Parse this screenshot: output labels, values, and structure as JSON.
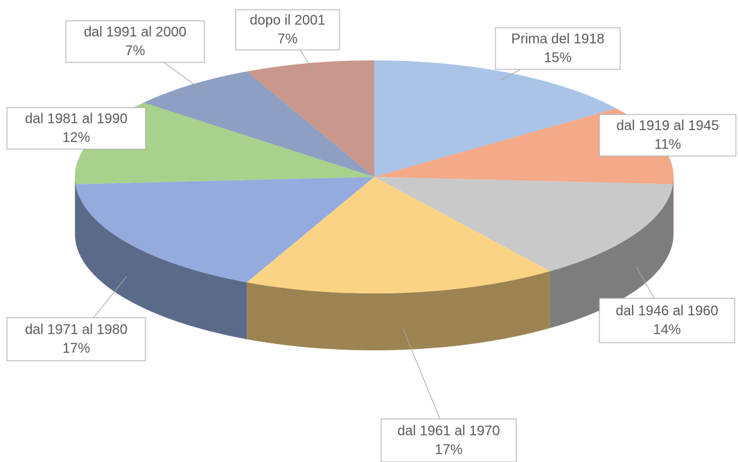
{
  "chart_data": {
    "type": "pie3d",
    "categories": [
      "Prima del 1918",
      "dal 1919 al 1945",
      "dal 1946 al 1960",
      "dal 1961 al 1970",
      "dal 1971 al 1980",
      "dal 1981 al 1990",
      "dal 1991 al 2000",
      "dopo il 2001"
    ],
    "values": [
      15,
      11,
      14,
      17,
      17,
      12,
      7,
      7
    ],
    "value_labels": [
      "15%",
      "11%",
      "14%",
      "17%",
      "17%",
      "12%",
      "7%",
      "7%"
    ],
    "colors": [
      "#a9c4e6",
      "#f4a988",
      "#c9c9c9",
      "#fbd384",
      "#94abde",
      "#a8d18c",
      "#8e9fc3",
      "#c9978b"
    ]
  }
}
